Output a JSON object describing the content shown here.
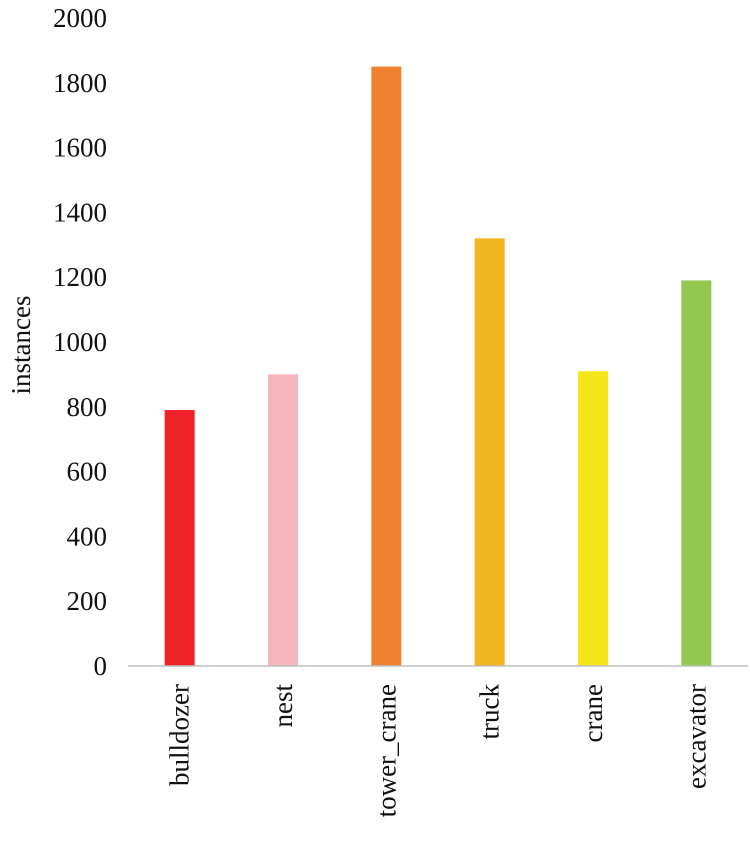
{
  "chart_data": {
    "type": "bar",
    "title": "",
    "xlabel": "",
    "ylabel": "instances",
    "ylim": [
      0,
      2000
    ],
    "yticks": [
      0,
      200,
      400,
      600,
      800,
      1000,
      1200,
      1400,
      1600,
      1800,
      2000
    ],
    "grid": false,
    "legend": "none",
    "categories": [
      "bulldozer",
      "nest",
      "tower_crane",
      "truck",
      "crane",
      "excavator"
    ],
    "values": [
      790,
      900,
      1850,
      1320,
      910,
      1190
    ],
    "colors": [
      "#ee2228",
      "#f4b5bd",
      "#ee8230",
      "#f0b520",
      "#f5e61a",
      "#92c850"
    ]
  }
}
